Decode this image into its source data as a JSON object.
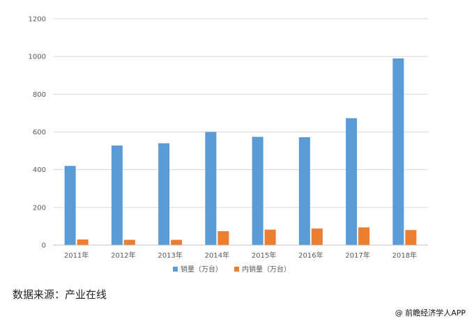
{
  "chart_data": {
    "type": "bar",
    "categories": [
      "2011年",
      "2012年",
      "2013年",
      "2014年",
      "2015年",
      "2016年",
      "2017年",
      "2018年"
    ],
    "series": [
      {
        "name": "销量（万台）",
        "color": "#5b9bd5",
        "values": [
          420,
          528,
          540,
          600,
          574,
          572,
          673,
          990
        ]
      },
      {
        "name": "内销量（万台）",
        "color": "#ed7d31",
        "values": [
          30,
          28,
          28,
          74,
          82,
          88,
          94,
          80
        ]
      }
    ],
    "ylim": [
      0,
      1200
    ],
    "yticks": [
      0,
      200,
      400,
      600,
      800,
      1000,
      1200
    ],
    "grid": true,
    "legend": "bottom"
  },
  "footer": {
    "source": "数据来源：产业在线",
    "watermark": "@ 前瞻经济学人APP"
  }
}
